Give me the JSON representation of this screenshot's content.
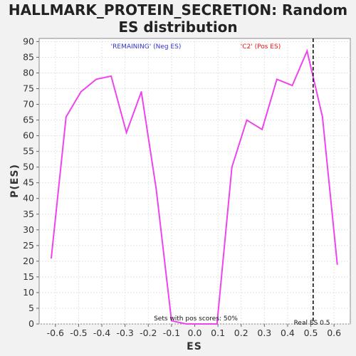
{
  "chart_data": {
    "type": "line",
    "title_lines": [
      "HALLMARK_PROTEIN_SECRETION: Random",
      "ES distribution"
    ],
    "xlabel": "ES",
    "ylabel": "P(ES)",
    "xlim": [
      -0.67,
      0.67
    ],
    "ylim": [
      0,
      91
    ],
    "x_ticks": [
      -0.6,
      -0.5,
      -0.4,
      -0.3,
      -0.2,
      -0.1,
      0.0,
      0.1,
      0.2,
      0.3,
      0.4,
      0.5,
      0.6
    ],
    "x_tick_labels": [
      "-0.6",
      "-0.5",
      "-0.4",
      "-0.3",
      "-0.2",
      "-0.1",
      "0.0",
      "0.1",
      "0.2",
      "0.3",
      "0.4",
      "0.5",
      "0.6"
    ],
    "y_ticks": [
      0,
      5,
      10,
      15,
      20,
      25,
      30,
      35,
      40,
      45,
      50,
      55,
      60,
      65,
      70,
      75,
      80,
      85,
      90
    ],
    "grid": true,
    "series": [
      {
        "color": "#ee44ee",
        "x": [
          -0.618,
          -0.554,
          -0.49,
          -0.424,
          -0.36,
          -0.294,
          -0.23,
          -0.166,
          -0.1,
          -0.036,
          0.03,
          0.096,
          0.16,
          0.224,
          0.29,
          0.354,
          0.42,
          0.484,
          0.55,
          0.614
        ],
        "y": [
          21,
          66,
          74,
          78,
          79,
          61,
          74,
          43,
          1,
          0,
          0,
          0,
          50,
          65,
          62,
          78,
          76,
          87,
          66,
          19
        ]
      }
    ],
    "real_es": {
      "x": 0.51,
      "label": "Real ES 0.5",
      "color": "#000000"
    },
    "annotations": {
      "neg_label": "'REMAINING' (Neg ES)",
      "neg_color": "#3333cc",
      "pos_label": "'C2' (Pos ES)",
      "pos_color": "#ee1111",
      "pos_scores_text": "Sets with pos scores: 50%"
    }
  }
}
